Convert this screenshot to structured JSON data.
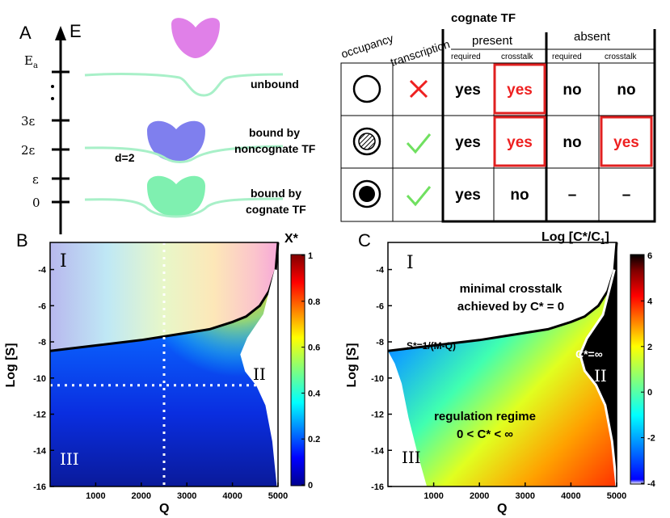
{
  "panel_a": {
    "letter": "A",
    "energy_axis_label": "E",
    "energy_ticks": [
      "E_a",
      "3ε",
      "2ε",
      "ε",
      "0"
    ],
    "distance_label": "d=2",
    "states": [
      "unbound",
      "bound by\nnoncognate TF",
      "bound by\ncognate TF"
    ],
    "table": {
      "title": "cognate TF",
      "col_occupancy": "occupancy",
      "col_transcription": "transcription",
      "group_present": "present",
      "group_absent": "absent",
      "sub_required": "required",
      "sub_crosstalk": "crosstalk",
      "rows": [
        {
          "occupancy": "empty-circle",
          "transcription": "cross",
          "cells": [
            "yes",
            "yes",
            "no",
            "no"
          ],
          "red": [
            false,
            true,
            false,
            false
          ]
        },
        {
          "occupancy": "hatched-circle",
          "transcription": "check",
          "cells": [
            "yes",
            "yes",
            "no",
            "yes"
          ],
          "red": [
            false,
            true,
            false,
            true
          ]
        },
        {
          "occupancy": "filled-circle",
          "transcription": "check",
          "cells": [
            "yes",
            "no",
            "–",
            "–"
          ],
          "red": [
            false,
            false,
            false,
            false
          ]
        }
      ]
    }
  },
  "panel_b": {
    "letter": "B",
    "xlabel": "Q",
    "ylabel": "Log [S]",
    "colorbar_title": "X*",
    "colorbar_ticks": [
      "1",
      "0.8",
      "0.6",
      "0.4",
      "0.2",
      "0"
    ],
    "region_labels": [
      "I",
      "II",
      "III"
    ]
  },
  "panel_c": {
    "letter": "C",
    "xlabel": "Q",
    "ylabel": "Log [S]",
    "colorbar_title": "Log [C*/C₁]",
    "colorbar_ticks": [
      "6",
      "4",
      "2",
      "0",
      "-2",
      "-4"
    ],
    "region_labels": [
      "I",
      "II",
      "III"
    ],
    "annotation_top": "minimal crosstalk\nachieved by C* = 0",
    "boundary_label": "S*=1/(M-Q)",
    "infinity_label": "C*=∞",
    "regime_label": "regulation regime\n0 < C* < ∞"
  },
  "chart_data": [
    {
      "type": "heatmap",
      "title": "X*",
      "xlabel": "Q",
      "ylabel": "Log [S]",
      "xlim": [
        0,
        5000
      ],
      "ylim": [
        -16,
        -2.5
      ],
      "x_ticks": [
        1000,
        2000,
        3000,
        4000,
        5000
      ],
      "y_ticks": [
        -4,
        -6,
        -8,
        -10,
        -12,
        -14,
        -16
      ],
      "x_tick_labels": [
        "1000",
        "2000",
        "3000",
        "4000",
        "5000"
      ],
      "y_tick_labels": [
        "-4",
        "-6",
        "-8",
        "-10",
        "-12",
        "-14",
        "-16"
      ],
      "colorbar_range": [
        0,
        1
      ],
      "boundary_I_II": {
        "Q": [
          0,
          1000,
          2000,
          3000,
          3500,
          4000,
          4300,
          4600,
          4800,
          4950,
          5000
        ],
        "logS": [
          -8.5,
          -8.2,
          -7.9,
          -7.5,
          -7.3,
          -6.9,
          -6.6,
          -6.0,
          -5.2,
          -4.0,
          -2.5
        ]
      },
      "crosshair": {
        "Q": 2500,
        "logS": -10.4
      }
    },
    {
      "type": "heatmap",
      "title": "Log [C*/C₁]",
      "xlabel": "Q",
      "ylabel": "Log [S]",
      "xlim": [
        0,
        5000
      ],
      "ylim": [
        -16,
        -2.5
      ],
      "x_ticks": [
        1000,
        2000,
        3000,
        4000,
        5000
      ],
      "y_ticks": [
        -4,
        -6,
        -8,
        -10,
        -12,
        -14,
        -16
      ],
      "x_tick_labels": [
        "1000",
        "2000",
        "3000",
        "4000",
        "5000"
      ],
      "y_tick_labels": [
        "-4",
        "-6",
        "-8",
        "-10",
        "-12",
        "-14",
        "-16"
      ],
      "colorbar_range": [
        -4,
        6
      ]
    }
  ]
}
